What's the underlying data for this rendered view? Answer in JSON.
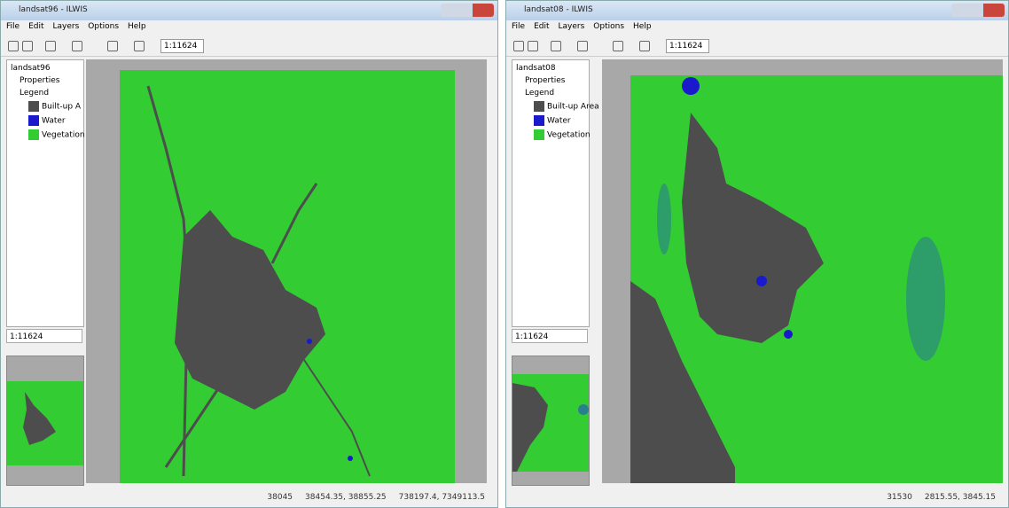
{
  "windows": [
    {
      "title": "landsat96 - ILWIS",
      "menu": [
        "File",
        "Edit",
        "Layers",
        "Options",
        "Help"
      ],
      "scale": "1:11624",
      "tree": {
        "root": "landsat96",
        "properties": "Properties",
        "legend": "Legend",
        "items": [
          {
            "label": "Built-up A",
            "color": "#4d4d4d"
          },
          {
            "label": "Water",
            "color": "#1a1acc"
          },
          {
            "label": "Vegetation",
            "color": "#33cc33"
          }
        ]
      },
      "coords": "1:11624",
      "status": [
        "38045",
        "38454.35, 38855.25",
        "738197.4, 7349113.5"
      ]
    },
    {
      "title": "landsat08 - ILWIS",
      "menu": [
        "File",
        "Edit",
        "Layers",
        "Options",
        "Help"
      ],
      "scale": "1:11624",
      "tree": {
        "root": "landsat08",
        "properties": "Properties",
        "legend": "Legend",
        "items": [
          {
            "label": "Built-up Area",
            "color": "#4d4d4d"
          },
          {
            "label": "Water",
            "color": "#1a1acc"
          },
          {
            "label": "Vegetation",
            "color": "#33cc33"
          }
        ]
      },
      "coords": "1:11624",
      "status": [
        "31530",
        "2815.55, 3845.15"
      ]
    }
  ]
}
